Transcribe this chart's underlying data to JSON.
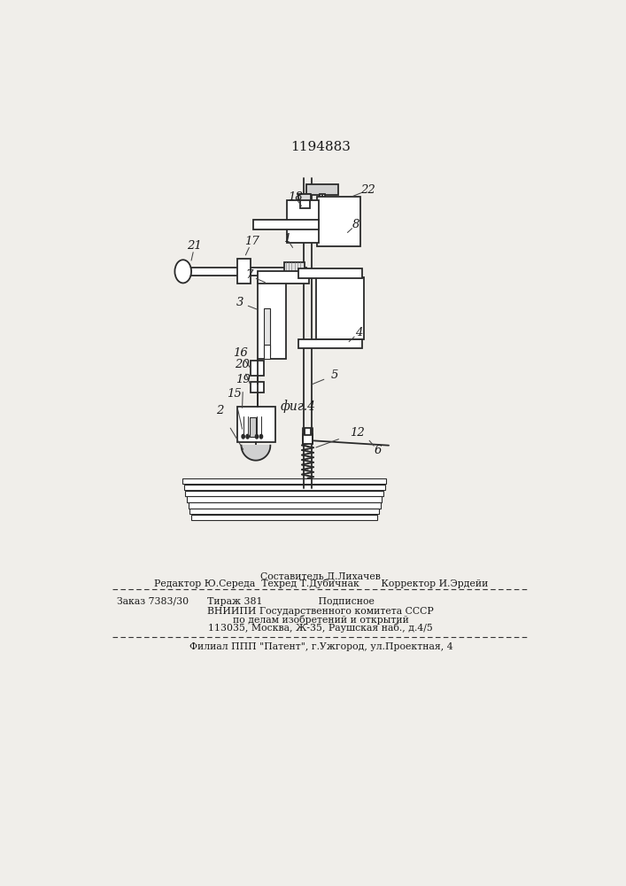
{
  "patent_number": "1194883",
  "fig_label": "фиг.4",
  "bg_color": "#f0eeea",
  "line_color": "#2a2a2a",
  "text_color": "#1a1a1a",
  "footer_line1_center": "Составитель Д.Лихачев",
  "footer_line2": "Редактор Ю.Середа  Техред Т.Дубичнак       Корректор И.Эрдейи",
  "footer_line3": "Заказ 7383/30      Тираж 381                  Подписное",
  "footer_line4": "ВНИИПИ Государственного комитета СССР",
  "footer_line5": "по делам изобретений и открытий",
  "footer_line6": "113035, Москва, Ж-35, Раушская наб., д.4/5",
  "footer_line7": "Филиал ППП \"Патент\", г.Ужгород, ул.Проектная, 4"
}
